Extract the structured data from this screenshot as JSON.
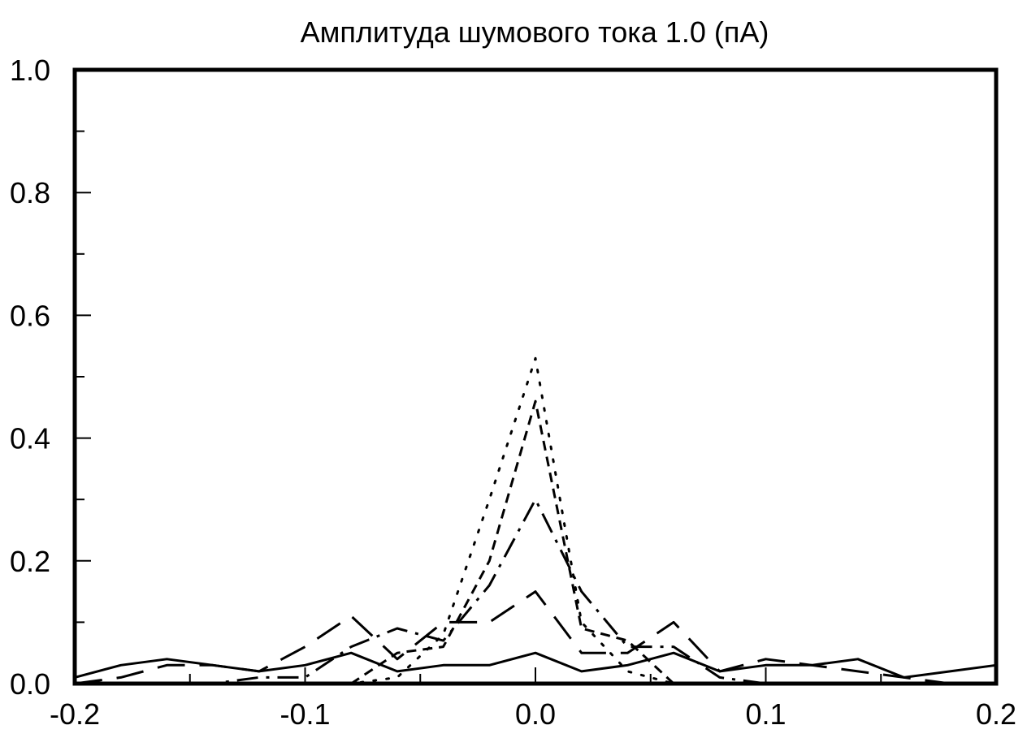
{
  "chart_data": {
    "type": "line",
    "title": "Амплитуда шумового тока 1.0 (пА)",
    "xlabel": "",
    "ylabel": "",
    "xlim": [
      -0.2,
      0.2
    ],
    "ylim": [
      0.0,
      1.0
    ],
    "x_ticks": [
      -0.2,
      -0.1,
      0.0,
      0.1,
      0.2
    ],
    "x_tick_labels": [
      "-0.2",
      "-0.1",
      "0.0",
      "0.1",
      "0.2"
    ],
    "x_minor_ticks": [
      -0.15,
      -0.05,
      0.05,
      0.15
    ],
    "y_ticks": [
      0.0,
      0.2,
      0.4,
      0.6,
      0.8,
      1.0
    ],
    "y_tick_labels": [
      "0.0",
      "0.2",
      "0.4",
      "0.6",
      "0.8",
      "1.0"
    ],
    "y_minor_ticks": [
      0.1,
      0.3,
      0.5,
      0.7,
      0.9
    ],
    "grid": false,
    "legend": "none",
    "line_color": "#000000",
    "series": [
      {
        "style": "solid",
        "x": [
          -0.2,
          -0.18,
          -0.16,
          -0.14,
          -0.12,
          -0.1,
          -0.08,
          -0.06,
          -0.04,
          -0.02,
          0.0,
          0.02,
          0.04,
          0.06,
          0.08,
          0.1,
          0.12,
          0.14,
          0.16,
          0.18,
          0.2
        ],
        "y": [
          0.01,
          0.03,
          0.04,
          0.03,
          0.02,
          0.03,
          0.05,
          0.02,
          0.03,
          0.03,
          0.05,
          0.02,
          0.03,
          0.05,
          0.02,
          0.03,
          0.03,
          0.04,
          0.01,
          0.02,
          0.03
        ]
      },
      {
        "style": "long-dash",
        "x": [
          -0.2,
          -0.18,
          -0.16,
          -0.14,
          -0.12,
          -0.1,
          -0.08,
          -0.06,
          -0.04,
          -0.02,
          0.0,
          0.02,
          0.04,
          0.06,
          0.08,
          0.1,
          0.12,
          0.14,
          0.16,
          0.18,
          0.2
        ],
        "y": [
          0.0,
          0.01,
          0.03,
          0.03,
          0.02,
          0.06,
          0.11,
          0.04,
          0.1,
          0.1,
          0.15,
          0.05,
          0.05,
          0.1,
          0.02,
          0.04,
          0.03,
          0.02,
          0.01,
          0.0,
          0.0
        ]
      },
      {
        "style": "dash-dot",
        "x": [
          -0.2,
          -0.18,
          -0.16,
          -0.14,
          -0.12,
          -0.1,
          -0.08,
          -0.06,
          -0.04,
          -0.02,
          0.0,
          0.02,
          0.04,
          0.06,
          0.08,
          0.1,
          0.12,
          0.14,
          0.16,
          0.18,
          0.2
        ],
        "y": [
          0.0,
          0.0,
          0.0,
          0.0,
          0.01,
          0.01,
          0.06,
          0.09,
          0.07,
          0.16,
          0.3,
          0.15,
          0.06,
          0.06,
          0.01,
          0.0,
          0.0,
          0.0,
          0.0,
          0.0,
          0.0
        ]
      },
      {
        "style": "short-dash",
        "x": [
          -0.2,
          -0.18,
          -0.16,
          -0.14,
          -0.12,
          -0.1,
          -0.08,
          -0.06,
          -0.04,
          -0.02,
          0.0,
          0.02,
          0.04,
          0.06,
          0.08,
          0.1,
          0.12,
          0.14,
          0.16,
          0.18,
          0.2
        ],
        "y": [
          0.0,
          0.0,
          0.0,
          0.0,
          0.0,
          0.0,
          0.0,
          0.05,
          0.06,
          0.2,
          0.46,
          0.09,
          0.07,
          0.0,
          0.0,
          0.0,
          0.0,
          0.0,
          0.0,
          0.0,
          0.0
        ]
      },
      {
        "style": "dotted",
        "x": [
          -0.2,
          -0.18,
          -0.16,
          -0.14,
          -0.12,
          -0.1,
          -0.08,
          -0.06,
          -0.04,
          -0.02,
          0.0,
          0.02,
          0.04,
          0.06,
          0.08,
          0.1,
          0.12,
          0.14,
          0.16,
          0.18,
          0.2
        ],
        "y": [
          0.0,
          0.0,
          0.0,
          0.0,
          0.0,
          0.0,
          0.0,
          0.01,
          0.08,
          0.3,
          0.53,
          0.1,
          0.02,
          0.0,
          0.0,
          0.0,
          0.0,
          0.0,
          0.0,
          0.0,
          0.0
        ]
      }
    ]
  }
}
